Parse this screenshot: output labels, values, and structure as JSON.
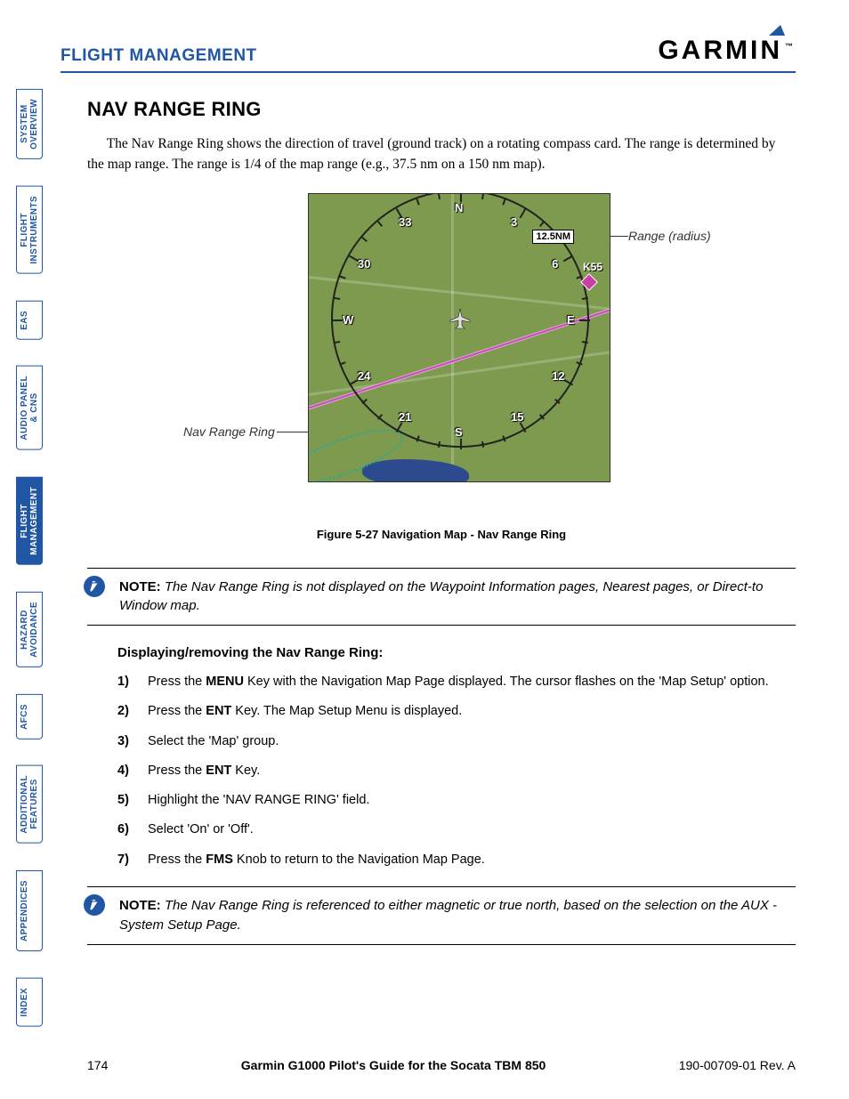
{
  "header": {
    "section": "FLIGHT MANAGEMENT",
    "brand": "GARMIN",
    "brand_tm": "™"
  },
  "sidebar": {
    "tabs": [
      {
        "label": "SYSTEM\nOVERVIEW",
        "active": false
      },
      {
        "label": "FLIGHT\nINSTRUMENTS",
        "active": false
      },
      {
        "label": "EAS",
        "active": false
      },
      {
        "label": "AUDIO PANEL\n& CNS",
        "active": false
      },
      {
        "label": "FLIGHT\nMANAGEMENT",
        "active": true
      },
      {
        "label": "HAZARD\nAVOIDANCE",
        "active": false
      },
      {
        "label": "AFCS",
        "active": false
      },
      {
        "label": "ADDITIONAL\nFEATURES",
        "active": false
      },
      {
        "label": "APPENDICES",
        "active": false
      },
      {
        "label": "INDEX",
        "active": false
      }
    ]
  },
  "section": {
    "title": "NAV RANGE RING",
    "intro": "The Nav Range Ring shows the direction of travel (ground track) on a rotating compass card. The range is determined by the map range. The range is 1/4 of the map range (e.g.,  37.5 nm on a 150 nm map)."
  },
  "figure": {
    "caption": "Figure 5-27  Navigation Map - Nav Range Ring",
    "callout_left": "Nav Range Ring",
    "callout_right": "Range (radius)",
    "range_label": "12.5NM",
    "waypoint": "K55",
    "compass": {
      "N": "N",
      "S": "S",
      "E": "E",
      "W": "W",
      "labels": [
        "3",
        "6",
        "12",
        "15",
        "21",
        "24",
        "30",
        "33"
      ]
    }
  },
  "note1": {
    "label": "NOTE:",
    "text": "The Nav Range Ring is not displayed on the Waypoint Information pages, Nearest pages, or Direct-to Window map."
  },
  "procedure": {
    "title": "Displaying/removing the Nav Range Ring:",
    "steps": [
      {
        "n": "1)",
        "pre": "Press the ",
        "key": "MENU",
        "post": " Key with the Navigation Map Page displayed.  The cursor flashes on the 'Map Setup' option."
      },
      {
        "n": "2)",
        "pre": "Press the ",
        "key": "ENT",
        "post": " Key.  The Map Setup Menu is displayed."
      },
      {
        "n": "3)",
        "pre": "Select the 'Map' group.",
        "key": "",
        "post": ""
      },
      {
        "n": "4)",
        "pre": "Press the ",
        "key": "ENT",
        "post": " Key."
      },
      {
        "n": "5)",
        "pre": "Highlight the 'NAV RANGE RING' field.",
        "key": "",
        "post": ""
      },
      {
        "n": "6)",
        "pre": "Select 'On' or 'Off'.",
        "key": "",
        "post": ""
      },
      {
        "n": "7)",
        "pre": "Press the ",
        "key": "FMS",
        "post": " Knob to return to the Navigation Map Page."
      }
    ]
  },
  "note2": {
    "label": "NOTE:",
    "text": "The Nav Range Ring is referenced to either magnetic or true north, based on the selection on the AUX - System Setup Page."
  },
  "footer": {
    "page": "174",
    "center": "Garmin G1000 Pilot's Guide for the Socata TBM 850",
    "right": "190-00709-01  Rev. A"
  },
  "colors": {
    "brand_blue": "#2156a5",
    "map_bg": "#7d9a4f"
  }
}
